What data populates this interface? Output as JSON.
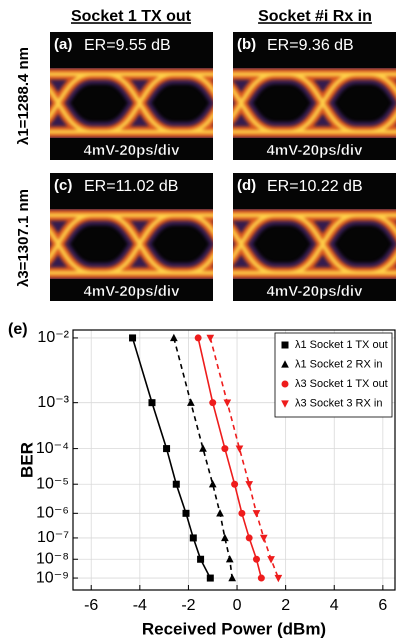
{
  "eye_diagrams": {
    "column_headers": [
      "Socket 1 TX out",
      "Socket #i Rx in"
    ],
    "row_labels": [
      "λ1=1288.4 nm",
      "λ3=1307.1 nm"
    ],
    "panels": [
      {
        "label": "(a)",
        "extinction_ratio": "ER=9.55 dB",
        "scale": "4mV-20ps/div"
      },
      {
        "label": "(b)",
        "extinction_ratio": "ER=9.36 dB",
        "scale": "4mV-20ps/div"
      },
      {
        "label": "(c)",
        "extinction_ratio": "ER=11.02 dB",
        "scale": "4mV-20ps/div"
      },
      {
        "label": "(d)",
        "extinction_ratio": "ER=10.22 dB",
        "scale": "4mV-20ps/div"
      }
    ]
  },
  "chart_data": {
    "type": "scatter",
    "panel_label": "(e)",
    "x_label": "Received Power (dBm)",
    "y_label": "BER",
    "yscale": "loglog",
    "grid": true,
    "legend": "upper right",
    "xlim": [
      -6.75,
      6.5
    ],
    "xticks": [
      -6,
      -4,
      -2,
      0,
      2,
      4,
      6
    ],
    "ylim": [
      0.0125,
      2e-10
    ],
    "yticks": [
      {
        "value": 0.01,
        "label": "10⁻²"
      },
      {
        "value": 0.001,
        "label": "10⁻³"
      },
      {
        "value": 0.0001,
        "label": "10⁻⁴"
      },
      {
        "value": 1e-05,
        "label": "10⁻⁵"
      },
      {
        "value": 1e-06,
        "label": "10⁻⁶"
      },
      {
        "value": 1e-07,
        "label": "10⁻⁷"
      },
      {
        "value": 1e-08,
        "label": "10⁻⁸"
      },
      {
        "value": 1e-09,
        "label": "10⁻⁹"
      }
    ],
    "series": [
      {
        "name": "λ1 Socket 1 TX out",
        "color": "#000000",
        "marker": "square",
        "dash": false,
        "x": [
          -4.3,
          -3.5,
          -2.9,
          -2.5,
          -2.1,
          -1.8,
          -1.5,
          -1.1
        ],
        "values": [
          0.01,
          0.001,
          0.0001,
          1e-05,
          1e-06,
          1e-07,
          1e-08,
          1e-09
        ]
      },
      {
        "name": "λ1 Socket 2 RX in",
        "color": "#000000",
        "marker": "triangle-up",
        "dash": true,
        "x": [
          -2.6,
          -1.9,
          -1.4,
          -1.0,
          -0.7,
          -0.5,
          -0.3,
          -0.2
        ],
        "values": [
          0.01,
          0.001,
          0.0001,
          1e-05,
          1e-06,
          1e-07,
          1e-08,
          1e-09
        ]
      },
      {
        "name": "λ3 Socket 1 TX out",
        "color": "#ee1c1c",
        "marker": "circle",
        "dash": false,
        "x": [
          -1.6,
          -1.0,
          -0.5,
          -0.1,
          0.2,
          0.5,
          0.8,
          1.0
        ],
        "values": [
          0.01,
          0.001,
          0.0001,
          1e-05,
          1e-06,
          1e-07,
          1e-08,
          1e-09
        ]
      },
      {
        "name": "λ3 Socket 3 RX in",
        "color": "#ee1c1c",
        "marker": "triangle-down",
        "dash": true,
        "x": [
          -1.1,
          -0.4,
          0.1,
          0.5,
          0.8,
          1.1,
          1.4,
          1.7
        ],
        "values": [
          0.01,
          0.001,
          0.0001,
          1e-05,
          1e-06,
          1e-07,
          1e-08,
          1e-09
        ]
      }
    ]
  }
}
